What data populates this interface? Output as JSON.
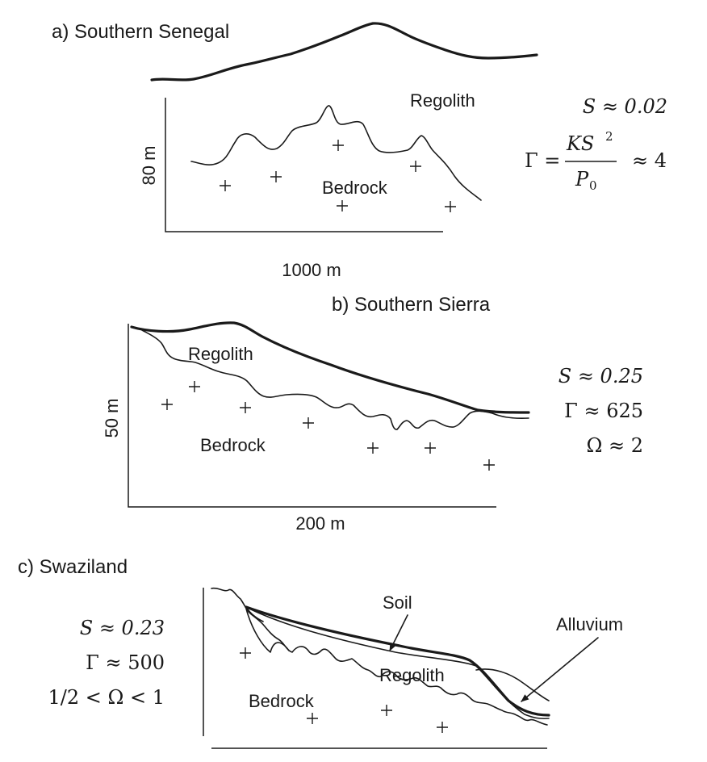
{
  "panel_a": {
    "title": "a) Southern Senegal",
    "regolith_label": "Regolith",
    "bedrock_label": "Bedrock",
    "y_scale": "80 m",
    "x_scale": "1000 m",
    "slope": "S ≈ 0.02",
    "gamma_lhs": "Γ =",
    "gamma_num": "KS",
    "gamma_num_exp": "2",
    "gamma_den": "P",
    "gamma_den_sub": "0",
    "gamma_rhs": "≈ 4"
  },
  "panel_b": {
    "title": "b) Southern Sierra",
    "regolith_label": "Regolith",
    "bedrock_label": "Bedrock",
    "y_scale": "50 m",
    "x_scale": "200 m",
    "slope": "S ≈ 0.25",
    "gamma": "Γ ≈ 625",
    "omega": "Ω ≈ 2"
  },
  "panel_c": {
    "title": "c) Swaziland",
    "soil_label": "Soil",
    "alluvium_label": "Alluvium",
    "regolith_label": "Regolith",
    "bedrock_label": "Bedrock",
    "slope": "S ≈ 0.23",
    "gamma": "Γ ≈ 500",
    "omega": "1/2 < Ω < 1"
  }
}
